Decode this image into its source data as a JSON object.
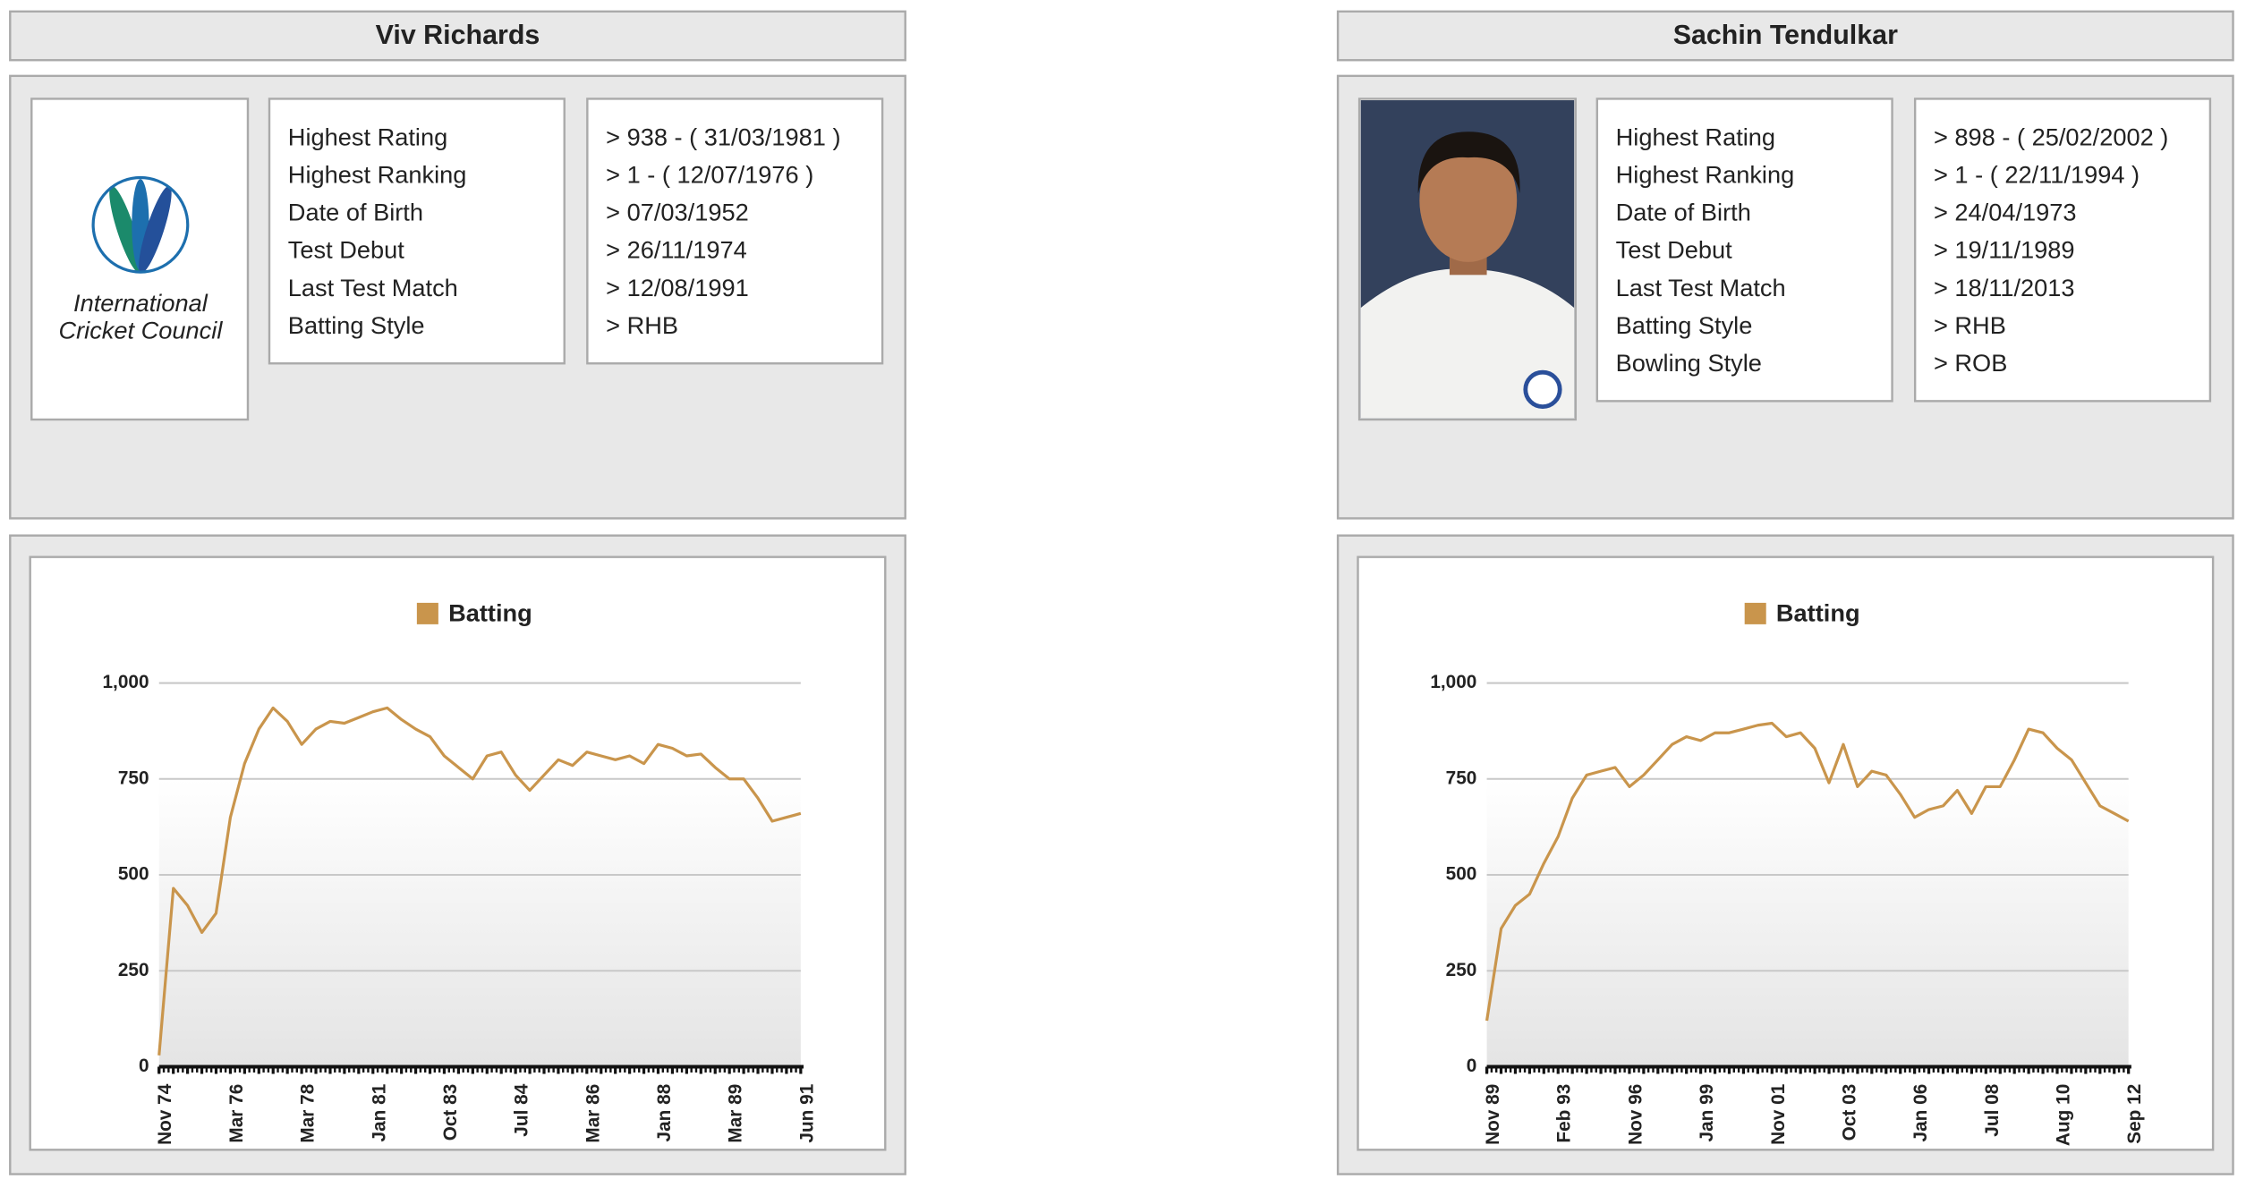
{
  "players": [
    {
      "name": "Viv Richards",
      "logo_text": [
        "International",
        "Cricket Council"
      ],
      "info": {
        "labels": [
          "Highest Rating",
          "Highest Ranking",
          "Date of Birth",
          "Test Debut",
          "Last Test Match",
          "Batting Style"
        ],
        "values": [
          "> 938 - ( 31/03/1981 )",
          "> 1 - ( 12/07/1976 )",
          "> 07/03/1952",
          "> 26/11/1974",
          "> 12/08/1991",
          "> RHB"
        ]
      }
    },
    {
      "name": "Sachin Tendulkar",
      "info": {
        "labels": [
          "Highest Rating",
          "Highest Ranking",
          "Date of Birth",
          "Test Debut",
          "Last Test Match",
          "Batting Style",
          "Bowling Style"
        ],
        "values": [
          "> 898 - ( 25/02/2002 )",
          "> 1 - ( 22/11/1994 )",
          "> 24/04/1973",
          "> 19/11/1989",
          "> 18/11/2013",
          "> RHB",
          "> ROB"
        ]
      }
    }
  ],
  "chart_data": [
    {
      "type": "line",
      "categories": [
        "Nov 74",
        null,
        null,
        null,
        null,
        "Mar 76",
        null,
        null,
        null,
        null,
        "Mar 78",
        null,
        null,
        null,
        null,
        "Jan 81",
        null,
        null,
        null,
        null,
        "Oct 83",
        null,
        null,
        null,
        null,
        "Jul 84",
        null,
        null,
        null,
        null,
        "Mar 86",
        null,
        null,
        null,
        null,
        "Jan 88",
        null,
        null,
        null,
        null,
        "Mar 89",
        null,
        null,
        null,
        null,
        "Jun 91"
      ],
      "series": [
        {
          "name": "Batting",
          "color": "#c9954c",
          "values": [
            30,
            465,
            420,
            350,
            400,
            650,
            790,
            880,
            935,
            900,
            840,
            880,
            900,
            895,
            910,
            925,
            935,
            905,
            880,
            860,
            810,
            780,
            750,
            810,
            820,
            760,
            720,
            760,
            800,
            785,
            820,
            810,
            800,
            810,
            790,
            840,
            830,
            810,
            815,
            780,
            750,
            750,
            700,
            640,
            650,
            660
          ]
        }
      ],
      "ylim": [
        0,
        1000
      ],
      "yticks": [
        0,
        250,
        500,
        750,
        {
          "value": 1000,
          "label": "1,000"
        }
      ],
      "grid": true
    },
    {
      "type": "line",
      "categories": [
        "Nov 89",
        null,
        null,
        null,
        null,
        "Feb 93",
        null,
        null,
        null,
        null,
        "Nov 96",
        null,
        null,
        null,
        null,
        "Jan 99",
        null,
        null,
        null,
        null,
        "Nov 01",
        null,
        null,
        null,
        null,
        "Oct 03",
        null,
        null,
        null,
        null,
        "Jan 06",
        null,
        null,
        null,
        null,
        "Jul 08",
        null,
        null,
        null,
        null,
        "Aug 10",
        null,
        null,
        null,
        null,
        "Sep 12"
      ],
      "series": [
        {
          "name": "Batting",
          "color": "#c9954c",
          "values": [
            120,
            360,
            420,
            450,
            530,
            600,
            700,
            760,
            770,
            780,
            730,
            760,
            800,
            840,
            860,
            850,
            870,
            870,
            880,
            890,
            895,
            860,
            870,
            830,
            740,
            840,
            730,
            770,
            760,
            710,
            650,
            670,
            680,
            720,
            660,
            730,
            730,
            800,
            880,
            870,
            830,
            800,
            740,
            680,
            660,
            640
          ]
        }
      ],
      "ylim": [
        0,
        1000
      ],
      "yticks": [
        0,
        250,
        500,
        750,
        {
          "value": 1000,
          "label": "1,000"
        }
      ],
      "grid": true
    }
  ]
}
